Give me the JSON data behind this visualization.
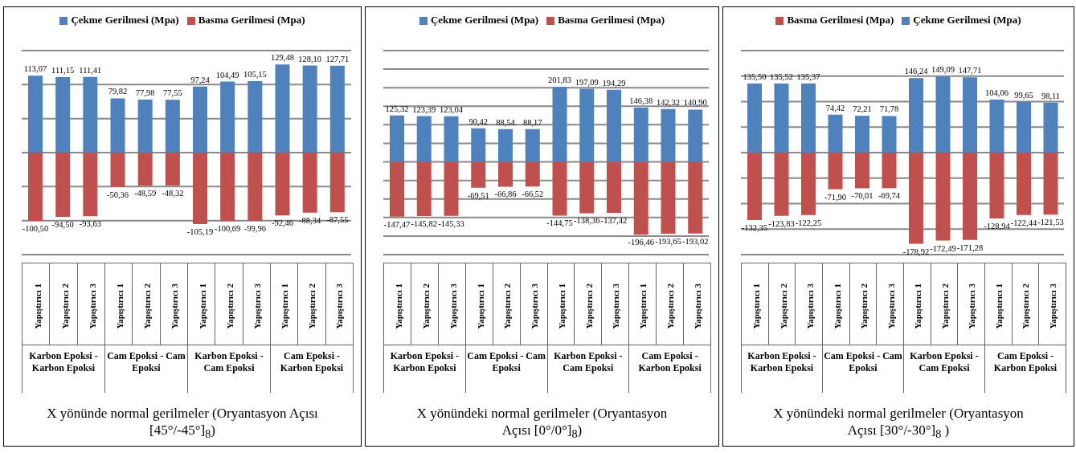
{
  "chart_data": [
    {
      "type": "bar",
      "title": "X yönünde normal gerilmeler (Oryantasyon Açısı [45°/-45°]$_{8}$)",
      "categories": [
        "Yapıştırıcı 1",
        "Yapıştırıcı 2",
        "Yapıştırıcı 3",
        "Yapıştırıcı 1",
        "Yapıştırıcı 2",
        "Yapıştırıcı 3",
        "Yapıştırıcı 1",
        "Yapıştırıcı 2",
        "Yapıştırıcı 3",
        "Yapıştırıcı 1",
        "Yapıştırıcı 2",
        "Yapıştırıcı 3"
      ],
      "annotations": [
        "Karbon Epoksi - Karbon Epoksi",
        "Cam Epoksi - Cam Epoksi",
        "Karbon Epoksi - Cam Epoksi",
        "Cam Epoksi - Karbon Epoksi"
      ],
      "series": [
        {
          "name": "Çekme Gerilmesi (Mpa)",
          "color": "#4f81bd",
          "values": [
            113.07,
            111.15,
            111.41,
            79.82,
            77.98,
            77.55,
            97.24,
            104.49,
            105.15,
            129.48,
            128.1,
            127.71
          ],
          "value_labels": [
            "113,07",
            "111,15",
            "111,41",
            "79,82",
            "77,98",
            "77,55",
            "97,24",
            "104,49",
            "105,15",
            "129,48",
            "128,10",
            "127,71"
          ]
        },
        {
          "name": "Basma Gerilmesi (Mpa)",
          "color": "#c0504d",
          "values": [
            -100.5,
            -94.5,
            -93.63,
            -50.36,
            -48.59,
            -48.32,
            -105.19,
            -100.69,
            -99.96,
            -92.46,
            -88.34,
            -87.55
          ],
          "value_labels": [
            "-100,50",
            "-94,50",
            "-93,63",
            "-50,36",
            "-48,59",
            "-48,32",
            "-105,19",
            "-100,69",
            "-99,96",
            "-92,46",
            "-88,34",
            "-87,55"
          ]
        }
      ],
      "stacked": true,
      "ylim": [
        -150,
        150
      ],
      "yticks": [
        {
          "value": -150,
          "label": null
        },
        {
          "value": -100,
          "label": null
        },
        {
          "value": -50,
          "label": null
        },
        {
          "value": 0,
          "label": null
        },
        {
          "value": 50,
          "label": null
        },
        {
          "value": 100,
          "label": null
        },
        {
          "value": 150,
          "label": null
        }
      ],
      "grid": "y",
      "legend": "top"
    },
    {
      "type": "bar",
      "title": "X yönündeki normal gerilmeler (Oryantasyon Açısı [0°/0°]$_{8}$)",
      "categories": [
        "Yapıştırıcı 1",
        "Yapıştırıcı 2",
        "Yapıştırıcı 3",
        "Yapıştırıcı 1",
        "Yapıştırıcı 2",
        "Yapıştırıcı 3",
        "Yapıştırıcı 1",
        "Yapıştırıcı 2",
        "Yapıştırıcı 3",
        "Yapıştırıcı 1",
        "Yapıştırıcı 2",
        "Yapıştırıcı 3"
      ],
      "annotations": [
        "Karbon Epoksi - Karbon Epoksi",
        "Cam Epoksi - Cam Epoksi",
        "Karbon Epoksi - Cam Epoksi",
        "Cam Epoksi - Karbon Epoksi"
      ],
      "series": [
        {
          "name": "Çekme Gerilmesi (Mpa)",
          "color": "#4f81bd",
          "values": [
            125.32,
            123.39,
            123.04,
            90.42,
            88.54,
            88.17,
            201.83,
            197.09,
            194.29,
            146.38,
            142.32,
            140.9
          ],
          "value_labels": [
            "125,32",
            "123,39",
            "123,04",
            "90,42",
            "88,54",
            "88,17",
            "201,83",
            "197,09",
            "194,29",
            "146,38",
            "142,32",
            "140,90"
          ]
        },
        {
          "name": "Basma Gerilmesi (Mpa)",
          "color": "#c0504d",
          "values": [
            -147.47,
            -145.82,
            -145.33,
            -69.51,
            -66.86,
            -66.52,
            -144.75,
            -138.36,
            -137.42,
            -196.46,
            -193.65,
            -193.02
          ],
          "value_labels": [
            "-147,47",
            "-145,82",
            "-145,33",
            "-69,51",
            "-66,86",
            "-66,52",
            "-144,75",
            "-138,36",
            "-137,42",
            "-196,46",
            "-193,65",
            "-193,02"
          ]
        }
      ],
      "stacked": true,
      "ylim": [
        -250,
        300
      ],
      "yticks": [
        {
          "value": -250,
          "label": null
        },
        {
          "value": -200,
          "label": null
        },
        {
          "value": -150,
          "label": null
        },
        {
          "value": -100,
          "label": null
        },
        {
          "value": -50,
          "label": null
        },
        {
          "value": 0,
          "label": null
        },
        {
          "value": 50,
          "label": null
        },
        {
          "value": 100,
          "label": null
        },
        {
          "value": 150,
          "label": null
        },
        {
          "value": 200,
          "label": null
        },
        {
          "value": 250,
          "label": null
        },
        {
          "value": 300,
          "label": null
        }
      ],
      "grid": "y",
      "legend": "top"
    },
    {
      "type": "bar",
      "title": "X yönündeki normal gerilmeler (Oryantasyon Açısı [30°/-30°]$_{8}$ )",
      "categories": [
        "Yapıştırıcı 1",
        "Yapıştırıcı 2",
        "Yapıştırıcı 3",
        "Yapıştırıcı 1",
        "Yapıştırıcı 2",
        "Yapıştırıcı 3",
        "Yapıştırıcı 1",
        "Yapıştırıcı 2",
        "Yapıştırıcı 3",
        "Yapıştırıcı 1",
        "Yapıştırıcı 2",
        "Yapıştırıcı 3"
      ],
      "annotations": [
        "Karbon Epoksi - Karbon Epoksi",
        "Cam Epoksi - Cam Epoksi",
        "Karbon Epoksi - Cam Epoksi",
        "Cam Epoksi - Karbon Epoksi"
      ],
      "series": [
        {
          "name": "Basma Gerilmesi (Mpa)",
          "color": "#c0504d",
          "values": [
            -132.35,
            -123.83,
            -122.25,
            -71.9,
            -70.01,
            -69.74,
            -178.92,
            -172.49,
            -171.28,
            -128.94,
            -122.44,
            -121.53
          ],
          "value_labels": [
            "-132,35",
            "-123,83",
            "-122,25",
            "-71,90",
            "-70,01",
            "-69,74",
            "-178,92",
            "-172,49",
            "-171,28",
            "-128,94",
            "-122,44",
            "-121,53"
          ]
        },
        {
          "name": "Çekme Gerilmesi (Mpa)",
          "color": "#4f81bd",
          "values": [
            135.5,
            135.52,
            135.37,
            74.42,
            72.21,
            71.78,
            146.24,
            149.09,
            147.71,
            104.06,
            99.65,
            98.11
          ],
          "value_labels": [
            "135,50",
            "135,52",
            "135,37",
            "74,42",
            "72,21",
            "71,78",
            "146,24",
            "149,09",
            "147,71",
            "104,06",
            "99,65",
            "98,11"
          ]
        }
      ],
      "stacked": true,
      "ylim": [
        -200,
        200
      ],
      "yticks": [
        {
          "value": -200,
          "label": null
        },
        {
          "value": -150,
          "label": null
        },
        {
          "value": -100,
          "label": null
        },
        {
          "value": -50,
          "label": null
        },
        {
          "value": 0,
          "label": null
        },
        {
          "value": 50,
          "label": null
        },
        {
          "value": 100,
          "label": null
        },
        {
          "value": 150,
          "label": null
        },
        {
          "value": 200,
          "label": null
        }
      ],
      "grid": "y",
      "legend": "top"
    }
  ]
}
